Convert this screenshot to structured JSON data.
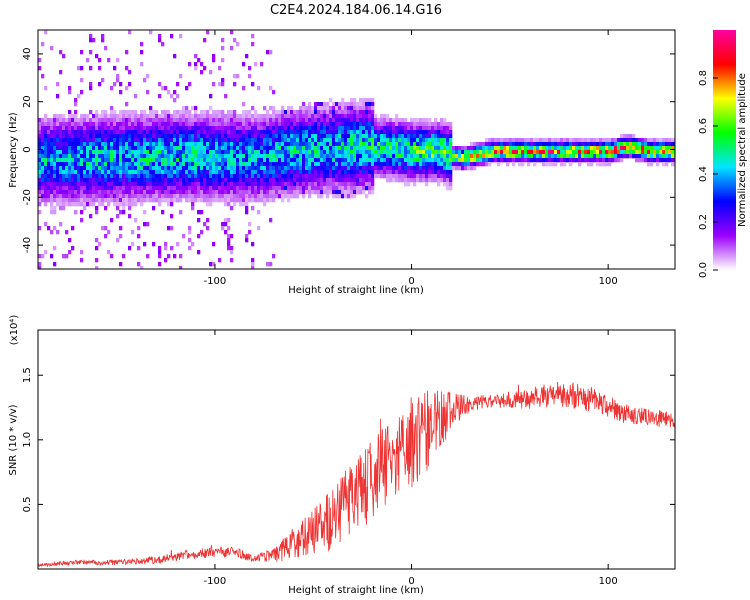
{
  "title": "C2E4.2024.184.06.14.G16",
  "chart_data": [
    {
      "type": "heatmap",
      "xlabel": "Height of straight line (km)",
      "ylabel": "Frequency (Hz)",
      "xlim": [
        -190,
        134
      ],
      "ylim": [
        -50,
        50
      ],
      "xticks": [
        -100,
        0,
        100
      ],
      "yticks": [
        -40,
        -20,
        0,
        20,
        40
      ],
      "xtick_labels": [
        "-100",
        "0",
        "100"
      ],
      "ytick_labels": [
        "-40",
        "-20",
        "0",
        "20",
        "40"
      ],
      "colorbar": {
        "label": "Normalized spectral amplitude",
        "range": [
          0,
          1
        ],
        "ticks": [
          0.0,
          0.2,
          0.4,
          0.6,
          0.8
        ],
        "tick_labels": [
          "0.0",
          "0.2",
          "0.4",
          "0.6",
          "0.8"
        ],
        "colors": [
          "#ffffff",
          "#9b00ff",
          "#0000ff",
          "#00e5ff",
          "#00ff00",
          "#ffff00",
          "#ff0000",
          "#ff00a0"
        ]
      },
      "ridge": {
        "description_points_x": [
          -190,
          -150,
          -110,
          -80,
          -60,
          -40,
          -20,
          0,
          15,
          20,
          25,
          40,
          60,
          80,
          100,
          110,
          120,
          134
        ],
        "frequency_center": [
          -4,
          -3,
          -2,
          -3,
          0,
          1,
          2,
          0,
          0,
          -2,
          -3,
          0,
          0,
          0,
          0,
          2,
          0,
          0
        ],
        "peak_amplitude": [
          0.45,
          0.5,
          0.5,
          0.45,
          0.5,
          0.5,
          0.55,
          0.6,
          0.65,
          0.7,
          0.85,
          0.85,
          0.85,
          0.85,
          0.85,
          0.85,
          0.85,
          0.85
        ]
      },
      "grid": false
    },
    {
      "type": "line",
      "xlabel": "Height of straight line (km)",
      "ylabel": "SNR (10 * v/v)",
      "y_multiplier": "(x10⁴)",
      "xlim": [
        -190,
        134
      ],
      "ylim": [
        0,
        1.85
      ],
      "xticks": [
        -100,
        0,
        100
      ],
      "yticks": [
        0.5,
        1.0,
        1.5
      ],
      "xtick_labels": [
        "-100",
        "0",
        "100"
      ],
      "ytick_labels": [
        "0.5",
        "1.0",
        "1.5"
      ],
      "color": "#ee3333",
      "x": [
        -190,
        -170,
        -150,
        -130,
        -110,
        -100,
        -90,
        -80,
        -70,
        -60,
        -50,
        -40,
        -30,
        -20,
        -10,
        0,
        10,
        20,
        30,
        40,
        50,
        60,
        70,
        80,
        90,
        100,
        110,
        120,
        134
      ],
      "y": [
        0.03,
        0.05,
        0.05,
        0.07,
        0.12,
        0.13,
        0.13,
        0.08,
        0.1,
        0.2,
        0.28,
        0.38,
        0.55,
        0.7,
        0.85,
        0.95,
        1.1,
        1.22,
        1.28,
        1.3,
        1.3,
        1.32,
        1.35,
        1.35,
        1.32,
        1.25,
        1.2,
        1.18,
        1.15
      ],
      "y_spread": [
        0.01,
        0.02,
        0.02,
        0.03,
        0.04,
        0.04,
        0.04,
        0.03,
        0.06,
        0.12,
        0.18,
        0.25,
        0.3,
        0.32,
        0.3,
        0.35,
        0.3,
        0.15,
        0.06,
        0.05,
        0.06,
        0.08,
        0.1,
        0.1,
        0.1,
        0.08,
        0.08,
        0.07,
        0.07
      ],
      "max_y": 1.85,
      "grid": false
    }
  ]
}
